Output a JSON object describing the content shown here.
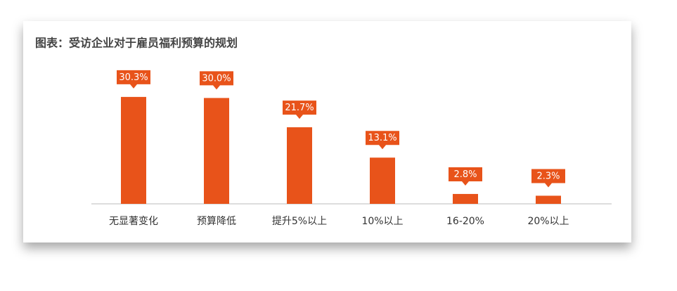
{
  "chart_data": {
    "type": "bar",
    "title": "图表：受访企业对于雇员福利预算的规划",
    "categories": [
      "无显著变化",
      "预算降低",
      "提升5%以上",
      "10%以上",
      "16-20%",
      "20%以上"
    ],
    "values": [
      30.3,
      30.0,
      21.7,
      13.1,
      2.8,
      2.3
    ],
    "value_labels": [
      "30.3%",
      "30.0%",
      "21.7%",
      "13.1%",
      "2.8%",
      "2.3%"
    ],
    "color": "#e8531a"
  }
}
